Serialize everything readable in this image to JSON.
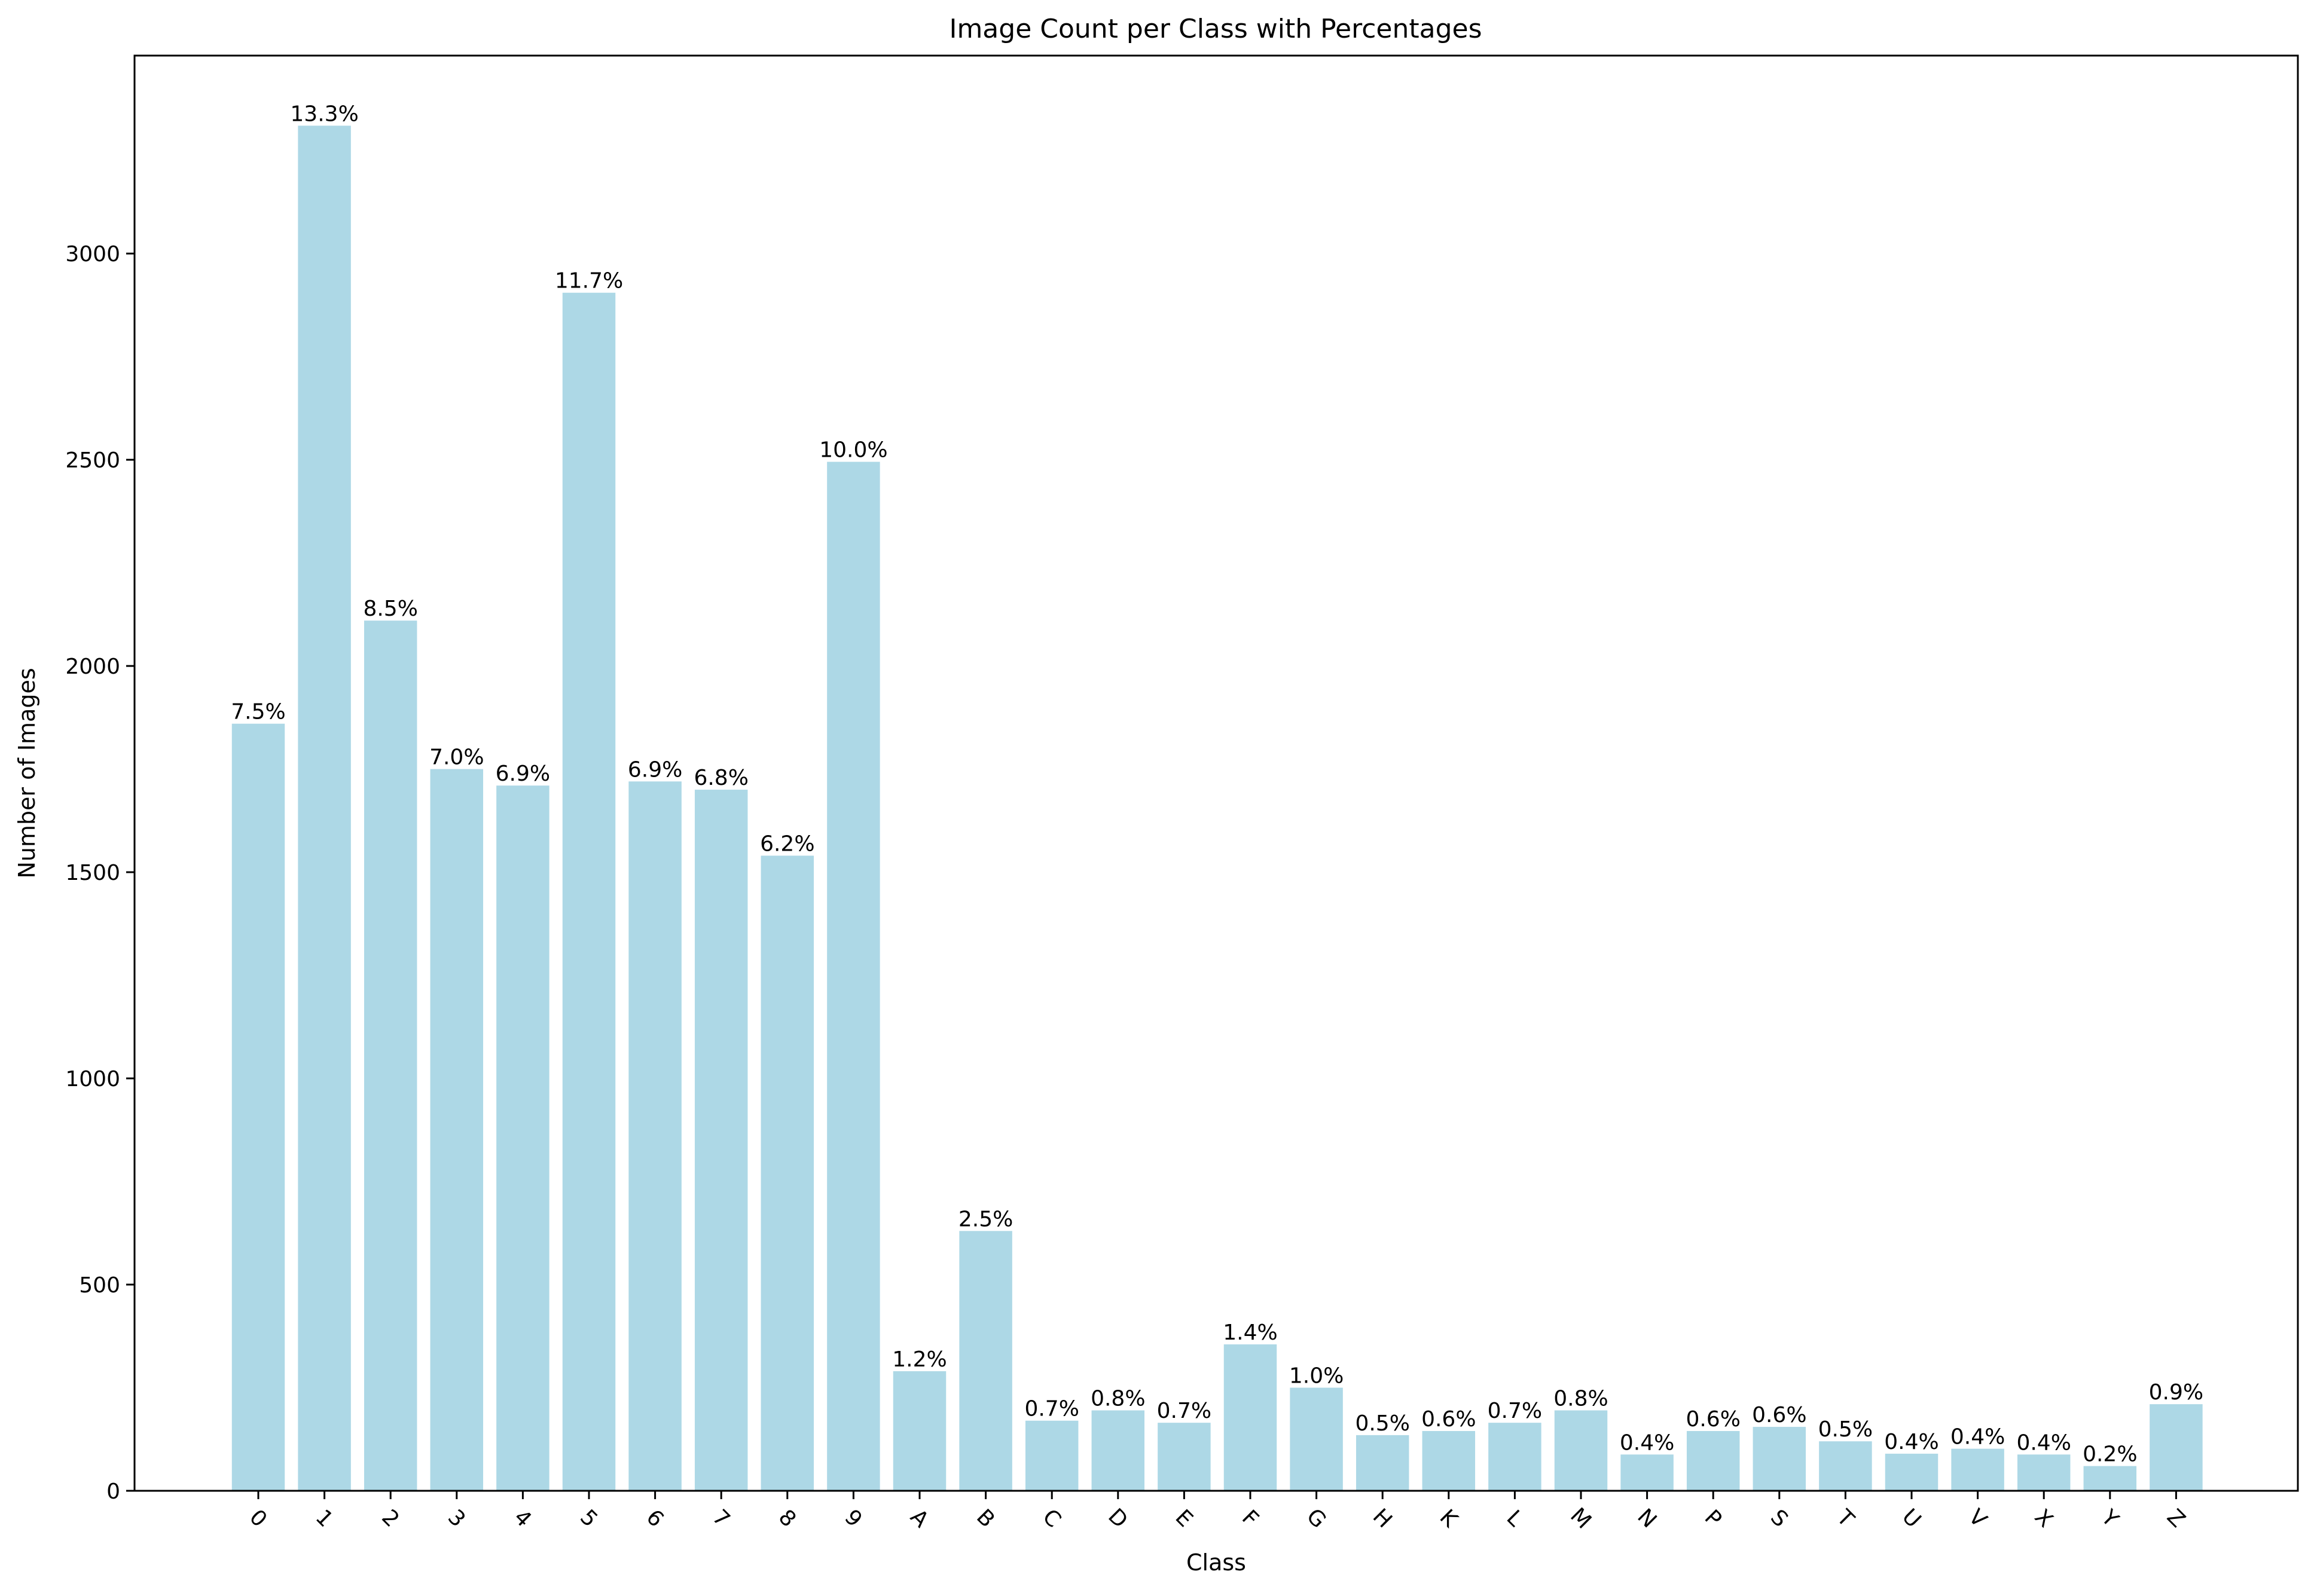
{
  "chart_data": {
    "type": "bar",
    "title": "Image Count per Class with Percentages",
    "xlabel": "Class",
    "ylabel": "Number of Images",
    "ylim": [
      0,
      3480
    ],
    "yticks": [
      0,
      500,
      1000,
      1500,
      2000,
      2500,
      3000
    ],
    "ytick_labels": [
      "0",
      "500",
      "1000",
      "1500",
      "2000",
      "2500",
      "3000"
    ],
    "grid": false,
    "legend": "none",
    "bar_color": "#add8e6",
    "categories": [
      "0",
      "1",
      "2",
      "3",
      "4",
      "5",
      "6",
      "7",
      "8",
      "9",
      "A",
      "B",
      "C",
      "D",
      "E",
      "F",
      "G",
      "H",
      "K",
      "L",
      "M",
      "N",
      "P",
      "S",
      "T",
      "U",
      "V",
      "X",
      "Y",
      "Z"
    ],
    "values": [
      1860,
      3310,
      2110,
      1750,
      1710,
      2905,
      1720,
      1700,
      1540,
      2495,
      290,
      630,
      170,
      195,
      165,
      355,
      250,
      135,
      145,
      165,
      195,
      88,
      145,
      155,
      120,
      90,
      102,
      88,
      60,
      210
    ],
    "labels": [
      "7.5%",
      "13.3%",
      "8.5%",
      "7.0%",
      "6.9%",
      "11.7%",
      "6.9%",
      "6.8%",
      "6.2%",
      "10.0%",
      "1.2%",
      "2.5%",
      "0.7%",
      "0.8%",
      "0.7%",
      "1.4%",
      "1.0%",
      "0.5%",
      "0.6%",
      "0.7%",
      "0.8%",
      "0.4%",
      "0.6%",
      "0.6%",
      "0.5%",
      "0.4%",
      "0.4%",
      "0.4%",
      "0.2%",
      "0.9%"
    ]
  }
}
